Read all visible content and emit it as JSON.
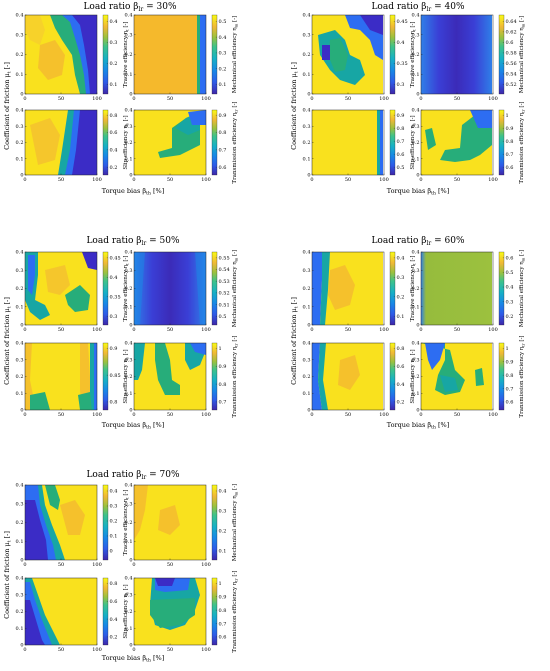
{
  "figure_label": "Composite heatmaps of tractive, mechanical, slip and transmission efficiency",
  "shared_text": {
    "ylabel_mu": "Coefficient of friction μ",
    "ylabel_mu_sub": "t",
    "ylabel_mu_unit": " [-]",
    "xlabel_bias": "Torque bias β",
    "xlabel_bias_sub": "th",
    "xlabel_bias_unit": " [%]",
    "x_ticks": [
      "0",
      "50",
      "100"
    ],
    "y_ticks": [
      "0",
      "0.1",
      "0.2",
      "0.3",
      "0.4"
    ]
  },
  "panel_titles": {
    "p30": "Load ratio β",
    "p30_sub": "lr",
    "p30_val": " = 30%",
    "p40": "Load ratio β",
    "p40_sub": "lr",
    "p40_val": " = 40%",
    "p50": "Load ratio β",
    "p50_sub": "lr",
    "p50_val": " = 50%",
    "p60": "Load ratio β",
    "p60_sub": "lr",
    "p60_val": " = 60%",
    "p70": "Load ratio β",
    "p70_sub": "lr",
    "p70_val": " = 70%"
  },
  "colorbar_labels": {
    "tractive": "Tractive efficiency η",
    "tractive_sub": "t",
    "tractive_unit": " [-]",
    "mechanical": "Mechanical efficiency η",
    "mechanical_sub": "m",
    "mechanical_unit": " [-]",
    "slip": "Slip efficiency η",
    "slip_sub": "s",
    "slip_unit": " [-]",
    "transmission": "Transmission efficiency η",
    "transmission_sub": "tr",
    "transmission_unit": " [-]"
  },
  "chart_data": [
    {
      "type": "heatmap",
      "group": "30%",
      "metric": "tractive",
      "xlim": [
        0,
        100
      ],
      "ylim": [
        0,
        0.4
      ],
      "clim_ticks": [
        "0.1",
        "0.2",
        "0.3",
        "0.4"
      ]
    },
    {
      "type": "heatmap",
      "group": "30%",
      "metric": "mechanical",
      "xlim": [
        0,
        100
      ],
      "ylim": [
        0,
        0.4
      ],
      "clim_ticks": [
        "0.1",
        "0.2",
        "0.3",
        "0.4",
        "0.5"
      ]
    },
    {
      "type": "heatmap",
      "group": "30%",
      "metric": "slip",
      "xlim": [
        0,
        100
      ],
      "ylim": [
        0,
        0.4
      ],
      "clim_ticks": [
        "0.2",
        "0.4",
        "0.6",
        "0.8"
      ]
    },
    {
      "type": "heatmap",
      "group": "30%",
      "metric": "transmission",
      "xlim": [
        0,
        100
      ],
      "ylim": [
        0,
        0.4
      ],
      "clim_ticks": [
        "0.6",
        "0.7",
        "0.8",
        "0.9"
      ]
    },
    {
      "type": "heatmap",
      "group": "40%",
      "metric": "tractive",
      "xlim": [
        0,
        100
      ],
      "ylim": [
        0,
        0.4
      ],
      "clim_ticks": [
        "0.3",
        "0.35",
        "0.4",
        "0.45"
      ]
    },
    {
      "type": "heatmap",
      "group": "40%",
      "metric": "mechanical",
      "xlim": [
        0,
        100
      ],
      "ylim": [
        0,
        0.4
      ],
      "clim_ticks": [
        "0.52",
        "0.54",
        "0.56",
        "0.58",
        "0.6",
        "0.62",
        "0.64"
      ]
    },
    {
      "type": "heatmap",
      "group": "40%",
      "metric": "slip",
      "xlim": [
        0,
        100
      ],
      "ylim": [
        0,
        0.4
      ],
      "clim_ticks": [
        "0.5",
        "0.6",
        "0.7",
        "0.8",
        "0.9"
      ]
    },
    {
      "type": "heatmap",
      "group": "40%",
      "metric": "transmission",
      "xlim": [
        0,
        100
      ],
      "ylim": [
        0,
        0.4
      ],
      "clim_ticks": [
        "0.6",
        "0.7",
        "0.8",
        "0.9",
        "1"
      ]
    },
    {
      "type": "heatmap",
      "group": "50%",
      "metric": "tractive",
      "xlim": [
        0,
        100
      ],
      "ylim": [
        0,
        0.4
      ],
      "clim_ticks": [
        "0.3",
        "0.35",
        "0.4",
        "0.45"
      ]
    },
    {
      "type": "heatmap",
      "group": "50%",
      "metric": "mechanical",
      "xlim": [
        0,
        100
      ],
      "ylim": [
        0,
        0.4
      ],
      "clim_ticks": [
        "0.5",
        "0.51",
        "0.52",
        "0.53",
        "0.54",
        "0.55"
      ]
    },
    {
      "type": "heatmap",
      "group": "50%",
      "metric": "slip",
      "xlim": [
        0,
        100
      ],
      "ylim": [
        0,
        0.4
      ],
      "clim_ticks": [
        "0.8",
        "0.85",
        "0.9"
      ]
    },
    {
      "type": "heatmap",
      "group": "50%",
      "metric": "transmission",
      "xlim": [
        0,
        100
      ],
      "ylim": [
        0,
        0.4
      ],
      "clim_ticks": [
        "0.7",
        "0.8",
        "0.9",
        "1"
      ]
    },
    {
      "type": "heatmap",
      "group": "60%",
      "metric": "tractive",
      "xlim": [
        0,
        100
      ],
      "ylim": [
        0,
        0.4
      ],
      "clim_ticks": [
        "0.1",
        "0.2",
        "0.3",
        "0.4"
      ]
    },
    {
      "type": "heatmap",
      "group": "60%",
      "metric": "mechanical",
      "xlim": [
        0,
        100
      ],
      "ylim": [
        0,
        0.4
      ],
      "clim_ticks": [
        "0.2",
        "0.3",
        "0.4",
        "0.5",
        "0.6"
      ]
    },
    {
      "type": "heatmap",
      "group": "60%",
      "metric": "slip",
      "xlim": [
        0,
        100
      ],
      "ylim": [
        0,
        0.4
      ],
      "clim_ticks": [
        "0.2",
        "0.4",
        "0.6",
        "0.8"
      ]
    },
    {
      "type": "heatmap",
      "group": "60%",
      "metric": "transmission",
      "xlim": [
        0,
        100
      ],
      "ylim": [
        0,
        0.4
      ],
      "clim_ticks": [
        "0.6",
        "0.7",
        "0.8",
        "0.9",
        "1"
      ]
    },
    {
      "type": "heatmap",
      "group": "70%",
      "metric": "tractive",
      "xlim": [
        0,
        100
      ],
      "ylim": [
        0,
        0.4
      ],
      "clim_ticks": [
        "0",
        "0.1",
        "0.2",
        "0.3",
        "0.4"
      ]
    },
    {
      "type": "heatmap",
      "group": "70%",
      "metric": "mechanical",
      "xlim": [
        0,
        100
      ],
      "ylim": [
        0,
        0.4
      ],
      "clim_ticks": [
        "0.1",
        "0.2",
        "0.3",
        "0.4"
      ]
    },
    {
      "type": "heatmap",
      "group": "70%",
      "metric": "slip",
      "xlim": [
        0,
        100
      ],
      "ylim": [
        0,
        0.4
      ],
      "clim_ticks": [
        "0.2",
        "0.4",
        "0.6",
        "0.8"
      ]
    },
    {
      "type": "heatmap",
      "group": "70%",
      "metric": "transmission",
      "xlim": [
        0,
        100
      ],
      "ylim": [
        0,
        0.4
      ],
      "clim_ticks": [
        "0.6",
        "0.7",
        "0.8",
        "0.9",
        "1"
      ]
    }
  ],
  "colors": {
    "yellow": "#f9e11e",
    "orange": "#f5b92c",
    "green": "#27ad7a",
    "teal": "#17a6a4",
    "blue": "#2d6df2",
    "navy": "#3b2cc6",
    "olive": "#96bc3d"
  }
}
